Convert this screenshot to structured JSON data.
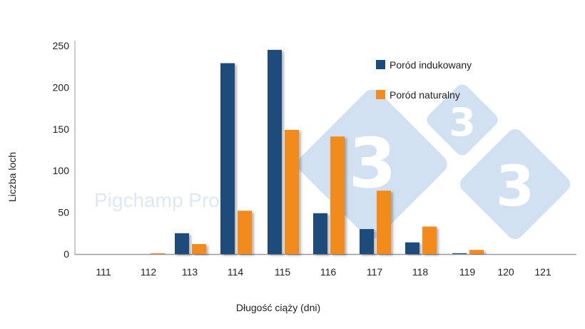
{
  "chart_data": {
    "type": "bar",
    "categories": [
      "111",
      "112",
      "113",
      "114",
      "115",
      "116",
      "117",
      "118",
      "119",
      "120",
      "121"
    ],
    "series": [
      {
        "name": "Poród indukowany",
        "color": "#1a4b7c",
        "values": [
          0,
          0,
          25,
          229,
          245,
          49,
          30,
          14,
          1,
          0,
          0
        ]
      },
      {
        "name": "Poród naturalny",
        "color": "#f28a1c",
        "values": [
          0,
          1,
          12,
          52,
          149,
          141,
          76,
          33,
          5,
          0,
          0
        ]
      }
    ],
    "title": "",
    "xlabel": "Długość ciąży (dni)",
    "ylabel": "Liczba loch",
    "ylim": [
      0,
      250
    ],
    "yticks": [
      0,
      50,
      100,
      150,
      200,
      250
    ],
    "grid": false,
    "legend_position": "top-right"
  },
  "watermark": {
    "text": "Pigchamp Pro",
    "logo_digits": [
      "3",
      "3",
      "3"
    ],
    "color": "#c9dcef"
  }
}
